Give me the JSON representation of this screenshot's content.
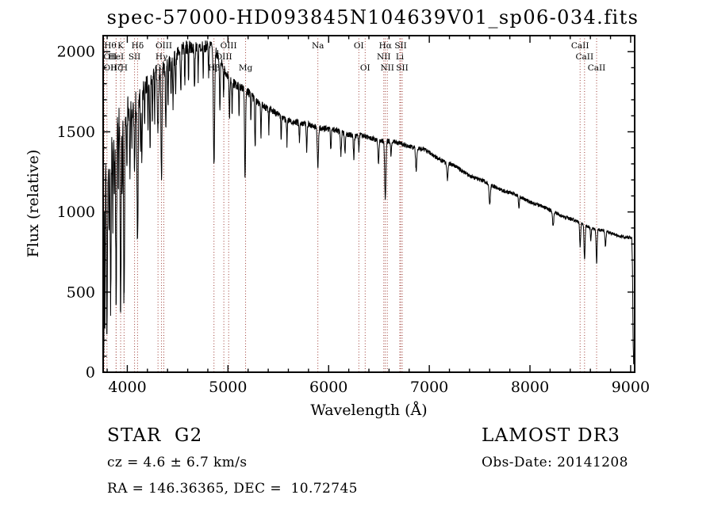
{
  "page": {
    "background": "#ffffff"
  },
  "chart_data": {
    "type": "line",
    "title": "spec-57000-HD093845N104639V01_sp06-034.fits",
    "xlabel": "Wavelength (Å)",
    "ylabel": "Flux (relative)",
    "xlim": [
      3760,
      9040
    ],
    "ylim": [
      0,
      2100
    ],
    "xticks": [
      4000,
      5000,
      6000,
      7000,
      8000,
      9000
    ],
    "yticks": [
      0,
      500,
      1000,
      1500,
      2000
    ],
    "x_minor_step": 200,
    "y_minor_step": 100,
    "grid": false,
    "line_color": "#000000",
    "marker_color": "#9e3d36",
    "data_wavelength_range": [
      3762,
      9030
    ],
    "continuum_points": [
      [
        3762,
        1280
      ],
      [
        3800,
        1390
      ],
      [
        3850,
        1460
      ],
      [
        3900,
        1510
      ],
      [
        3950,
        1545
      ],
      [
        4000,
        1590
      ],
      [
        4050,
        1635
      ],
      [
        4100,
        1690
      ],
      [
        4150,
        1745
      ],
      [
        4200,
        1800
      ],
      [
        4250,
        1840
      ],
      [
        4300,
        1875
      ],
      [
        4350,
        1905
      ],
      [
        4400,
        1945
      ],
      [
        4450,
        1975
      ],
      [
        4500,
        2000
      ],
      [
        4550,
        2020
      ],
      [
        4600,
        2035
      ],
      [
        4650,
        2045
      ],
      [
        4700,
        2048
      ],
      [
        4750,
        2045
      ],
      [
        4800,
        2030
      ],
      [
        4850,
        2010
      ],
      [
        4900,
        1960
      ],
      [
        4950,
        1905
      ],
      [
        5000,
        1845
      ],
      [
        5050,
        1800
      ],
      [
        5100,
        1775
      ],
      [
        5150,
        1750
      ],
      [
        5200,
        1735
      ],
      [
        5300,
        1695
      ],
      [
        5400,
        1650
      ],
      [
        5500,
        1612
      ],
      [
        5600,
        1580
      ],
      [
        5700,
        1558
      ],
      [
        5800,
        1540
      ],
      [
        5900,
        1528
      ],
      [
        6000,
        1508
      ],
      [
        6100,
        1494
      ],
      [
        6200,
        1484
      ],
      [
        6300,
        1478
      ],
      [
        6400,
        1466
      ],
      [
        6500,
        1456
      ],
      [
        6600,
        1444
      ],
      [
        6700,
        1430
      ],
      [
        6800,
        1414
      ],
      [
        6900,
        1392
      ],
      [
        7000,
        1362
      ],
      [
        7100,
        1330
      ],
      [
        7200,
        1298
      ],
      [
        7300,
        1266
      ],
      [
        7400,
        1235
      ],
      [
        7500,
        1205
      ],
      [
        7600,
        1176
      ],
      [
        7700,
        1147
      ],
      [
        7800,
        1118
      ],
      [
        7900,
        1089
      ],
      [
        8000,
        1061
      ],
      [
        8100,
        1034
      ],
      [
        8200,
        1008
      ],
      [
        8300,
        983
      ],
      [
        8400,
        958
      ],
      [
        8500,
        934
      ],
      [
        8600,
        910
      ],
      [
        8700,
        887
      ],
      [
        8800,
        866
      ],
      [
        8900,
        849
      ],
      [
        8950,
        841
      ],
      [
        9000,
        834
      ],
      [
        9012,
        826
      ],
      [
        9018,
        640
      ],
      [
        9024,
        220
      ],
      [
        9030,
        45
      ]
    ],
    "noise_profile": [
      [
        3762,
        150
      ],
      [
        3900,
        135
      ],
      [
        4000,
        95
      ],
      [
        4150,
        70
      ],
      [
        4300,
        55
      ],
      [
        4500,
        45
      ],
      [
        4800,
        38
      ],
      [
        5000,
        30
      ],
      [
        5400,
        24
      ],
      [
        5800,
        20
      ],
      [
        6200,
        18
      ],
      [
        6800,
        15
      ],
      [
        7400,
        13
      ],
      [
        8200,
        11
      ],
      [
        9030,
        10
      ]
    ],
    "absorption_lines": [
      [
        3766,
        1250,
        3
      ],
      [
        3778,
        1100,
        3
      ],
      [
        3798,
        1150,
        5
      ],
      [
        3820,
        520,
        3
      ],
      [
        3835,
        1000,
        4
      ],
      [
        3856,
        480,
        3
      ],
      [
        3872,
        420,
        3
      ],
      [
        3889,
        1050,
        5
      ],
      [
        3912,
        400,
        3
      ],
      [
        3934,
        1280,
        5
      ],
      [
        3950,
        500,
        3
      ],
      [
        3968,
        1200,
        5
      ],
      [
        3995,
        420,
        3
      ],
      [
        4026,
        480,
        4
      ],
      [
        4045,
        260,
        3
      ],
      [
        4072,
        420,
        4
      ],
      [
        4102,
        900,
        5
      ],
      [
        4132,
        320,
        3
      ],
      [
        4144,
        420,
        4
      ],
      [
        4172,
        280,
        3
      ],
      [
        4206,
        260,
        3
      ],
      [
        4226,
        480,
        4
      ],
      [
        4250,
        300,
        3
      ],
      [
        4272,
        280,
        3
      ],
      [
        4305,
        380,
        7
      ],
      [
        4340,
        690,
        5
      ],
      [
        4383,
        430,
        4
      ],
      [
        4405,
        250,
        3
      ],
      [
        4435,
        230,
        3
      ],
      [
        4455,
        290,
        4
      ],
      [
        4481,
        260,
        3
      ],
      [
        4531,
        280,
        4
      ],
      [
        4571,
        220,
        3
      ],
      [
        4608,
        200,
        3
      ],
      [
        4668,
        280,
        4
      ],
      [
        4704,
        200,
        3
      ],
      [
        4754,
        190,
        3
      ],
      [
        4808,
        200,
        3
      ],
      [
        4861,
        740,
        6
      ],
      [
        4920,
        290,
        4
      ],
      [
        4957,
        180,
        3
      ],
      [
        5015,
        230,
        4
      ],
      [
        5041,
        180,
        3
      ],
      [
        5110,
        190,
        3
      ],
      [
        5170,
        560,
        5
      ],
      [
        5228,
        170,
        3
      ],
      [
        5270,
        310,
        4
      ],
      [
        5328,
        190,
        4
      ],
      [
        5406,
        160,
        3
      ],
      [
        5528,
        140,
        3
      ],
      [
        5586,
        150,
        3
      ],
      [
        5710,
        130,
        3
      ],
      [
        5782,
        170,
        4
      ],
      [
        5893,
        240,
        6
      ],
      [
        6022,
        130,
        4
      ],
      [
        6122,
        140,
        5
      ],
      [
        6162,
        120,
        4
      ],
      [
        6250,
        140,
        5
      ],
      [
        6300,
        90,
        4
      ],
      [
        6495,
        130,
        5
      ],
      [
        6563,
        360,
        6
      ],
      [
        6620,
        90,
        4
      ],
      [
        6870,
        140,
        6
      ],
      [
        7180,
        110,
        6
      ],
      [
        7600,
        120,
        7
      ],
      [
        7890,
        80,
        5
      ],
      [
        8230,
        90,
        6
      ],
      [
        8498,
        150,
        5
      ],
      [
        8542,
        215,
        5
      ],
      [
        8605,
        80,
        4
      ],
      [
        8662,
        210,
        5
      ],
      [
        8750,
        95,
        5
      ]
    ],
    "spectral_line_markers": [
      {
        "label": "Hθ",
        "wavelength": 3798,
        "row": 0
      },
      {
        "label": "K",
        "wavelength": 3934,
        "row": 0
      },
      {
        "label": "Hδ",
        "wavelength": 4102,
        "row": 0
      },
      {
        "label": "OIII",
        "wavelength": 4363,
        "row": 0
      },
      {
        "label": "OIII",
        "wavelength": 5007,
        "row": 0
      },
      {
        "label": "Na",
        "wavelength": 5893,
        "row": 0
      },
      {
        "label": "OI",
        "wavelength": 6300,
        "row": 0
      },
      {
        "label": "Hα",
        "wavelength": 6563,
        "row": 0
      },
      {
        "label": "SII",
        "wavelength": 6716,
        "row": 0
      },
      {
        "label": "CaII",
        "wavelength": 8498,
        "row": 0
      },
      {
        "label": "OII",
        "wavelength": 3727,
        "row": 1
      },
      {
        "label": "HeI",
        "wavelength": 3889,
        "row": 1
      },
      {
        "label": "SII",
        "wavelength": 4072,
        "row": 1
      },
      {
        "label": "Hγ",
        "wavelength": 4340,
        "row": 1
      },
      {
        "label": "OIII",
        "wavelength": 4959,
        "row": 1
      },
      {
        "label": "NII",
        "wavelength": 6548,
        "row": 1
      },
      {
        "label": "Li",
        "wavelength": 6707,
        "row": 1
      },
      {
        "label": "CaII",
        "wavelength": 8542,
        "row": 1
      },
      {
        "label": "OII",
        "wavelength": 3729,
        "row": 2
      },
      {
        "label": "Hζ",
        "wavelength": 3889,
        "row": 2
      },
      {
        "label": "H",
        "wavelength": 3968,
        "row": 2
      },
      {
        "label": "G",
        "wavelength": 4305,
        "row": 2
      },
      {
        "label": "Hβ",
        "wavelength": 4861,
        "row": 2
      },
      {
        "label": "Mg",
        "wavelength": 5175,
        "row": 2
      },
      {
        "label": "OI",
        "wavelength": 6363,
        "row": 2
      },
      {
        "label": "NII",
        "wavelength": 6583,
        "row": 2
      },
      {
        "label": "SII",
        "wavelength": 6731,
        "row": 2
      },
      {
        "label": "CaII",
        "wavelength": 8662,
        "row": 2
      }
    ]
  },
  "annotations": {
    "object_class": "STAR",
    "subclass": "G2",
    "survey": "LAMOST DR3",
    "cz_line": "cz = 4.6 ± 6.7 km/s",
    "obs_date_line": "Obs-Date: 20141208",
    "coords_line": "RA = 146.36365, DEC =  10.72745"
  }
}
